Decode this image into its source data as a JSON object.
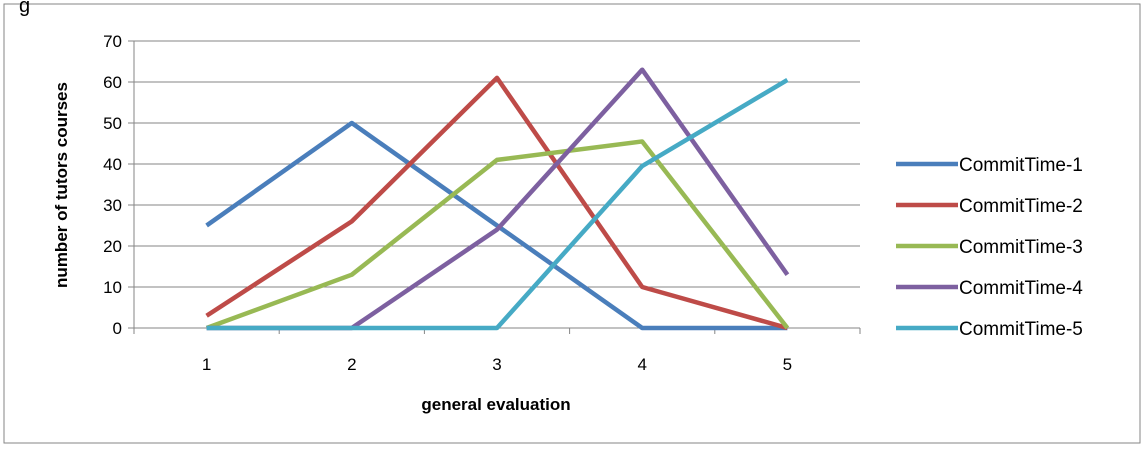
{
  "chart_data": {
    "type": "line",
    "title_fragment": "g",
    "xlabel": "general evaluation",
    "ylabel": "number of tutors courses",
    "x": [
      1,
      2,
      3,
      4,
      5
    ],
    "ylim": [
      0,
      70
    ],
    "yticks": [
      0,
      10,
      20,
      30,
      40,
      50,
      60,
      70
    ],
    "grid": "horizontal",
    "legend": "right",
    "series": [
      {
        "name": "CommitTime-1",
        "color": "#4a7ebb",
        "values": [
          25,
          50,
          25,
          0,
          0
        ]
      },
      {
        "name": "CommitTime-2",
        "color": "#be4b48",
        "values": [
          3,
          26,
          61,
          10,
          0
        ]
      },
      {
        "name": "CommitTime-3",
        "color": "#98b954",
        "values": [
          0,
          13,
          41,
          45.5,
          0
        ]
      },
      {
        "name": "CommitTime-4",
        "color": "#7d60a0",
        "values": [
          0,
          0,
          24,
          63,
          13
        ]
      },
      {
        "name": "CommitTime-5",
        "color": "#46aac5",
        "values": [
          0,
          0,
          0,
          39.5,
          60.5
        ]
      }
    ]
  }
}
